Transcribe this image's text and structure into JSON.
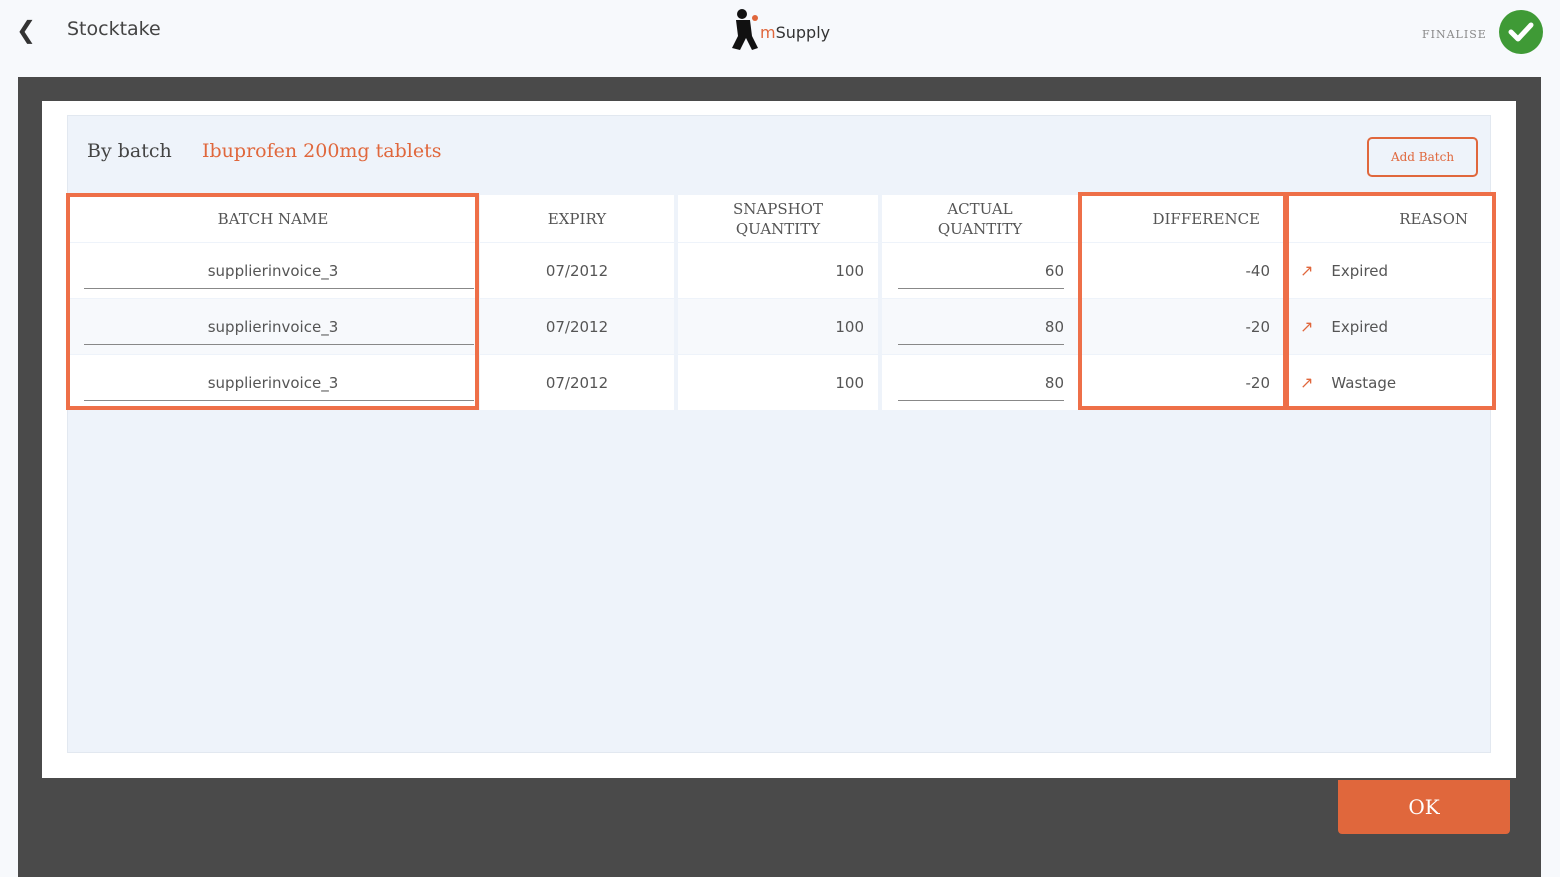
{
  "header": {
    "back_icon": "chevron-left-icon",
    "title": "Stocktake",
    "logo_prefix": "m",
    "logo_text": "Supply",
    "finalise_label": "FINALISE",
    "finalise_icon": "check-circle-icon"
  },
  "modal": {
    "by_label": "By batch",
    "item_name": "Ibuprofen 200mg tablets",
    "add_batch_label": "Add Batch",
    "ok_label": "OK",
    "columns": [
      "BATCH NAME",
      "EXPIRY",
      "SNAPSHOT QUANTITY",
      "ACTUAL QUANTITY",
      "DIFFERENCE",
      "REASON"
    ],
    "rows": [
      {
        "batch": "supplierinvoice_3",
        "expiry": "07/2012",
        "snapshot": "100",
        "actual": "60",
        "difference": "-40",
        "reason": "Expired"
      },
      {
        "batch": "supplierinvoice_3",
        "expiry": "07/2012",
        "snapshot": "100",
        "actual": "80",
        "difference": "-20",
        "reason": "Expired"
      },
      {
        "batch": "supplierinvoice_3",
        "expiry": "07/2012",
        "snapshot": "100",
        "actual": "80",
        "difference": "-20",
        "reason": "Wastage"
      }
    ]
  },
  "colors": {
    "accent": "#e0673c",
    "highlight": "#ee6f48",
    "success": "#3f9a36",
    "frame": "#4a4a4a"
  }
}
